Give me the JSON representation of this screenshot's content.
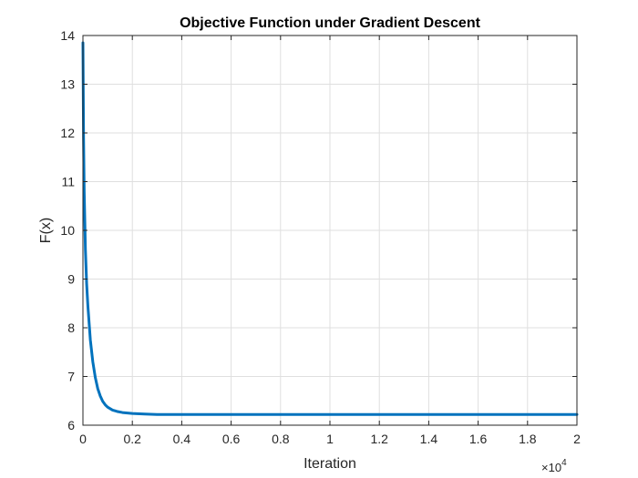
{
  "chart_data": {
    "type": "line",
    "title": "Objective Function under Gradient Descent",
    "xlabel": "Iteration",
    "ylabel": "F(x)",
    "xlim": [
      0,
      20000
    ],
    "ylim": [
      6,
      14
    ],
    "x_tick_labels": [
      "0",
      "0.2",
      "0.4",
      "0.6",
      "0.8",
      "1",
      "1.2",
      "1.4",
      "1.6",
      "1.8",
      "2"
    ],
    "x_tick_values": [
      0,
      2000,
      4000,
      6000,
      8000,
      10000,
      12000,
      14000,
      16000,
      18000,
      20000
    ],
    "x_exponent_base": "×10",
    "x_exponent_power": "4",
    "y_tick_labels": [
      "6",
      "7",
      "8",
      "9",
      "10",
      "11",
      "12",
      "13",
      "14"
    ],
    "y_tick_values": [
      6,
      7,
      8,
      9,
      10,
      11,
      12,
      13,
      14
    ],
    "grid": true,
    "series": [
      {
        "color": "#0072BD",
        "x": [
          0,
          25,
          50,
          100,
          150,
          200,
          300,
          400,
          500,
          600,
          700,
          800,
          900,
          1000,
          1200,
          1400,
          1600,
          1800,
          2000,
          2500,
          3000,
          4000,
          6000,
          8000,
          10000,
          12000,
          14000,
          16000,
          18000,
          20000
        ],
        "y": [
          13.85,
          11.9,
          10.8,
          9.6,
          8.9,
          8.45,
          7.75,
          7.3,
          6.98,
          6.75,
          6.6,
          6.49,
          6.42,
          6.37,
          6.31,
          6.28,
          6.26,
          6.25,
          6.24,
          6.23,
          6.22,
          6.22,
          6.22,
          6.22,
          6.22,
          6.22,
          6.22,
          6.22,
          6.22,
          6.22
        ]
      }
    ]
  }
}
